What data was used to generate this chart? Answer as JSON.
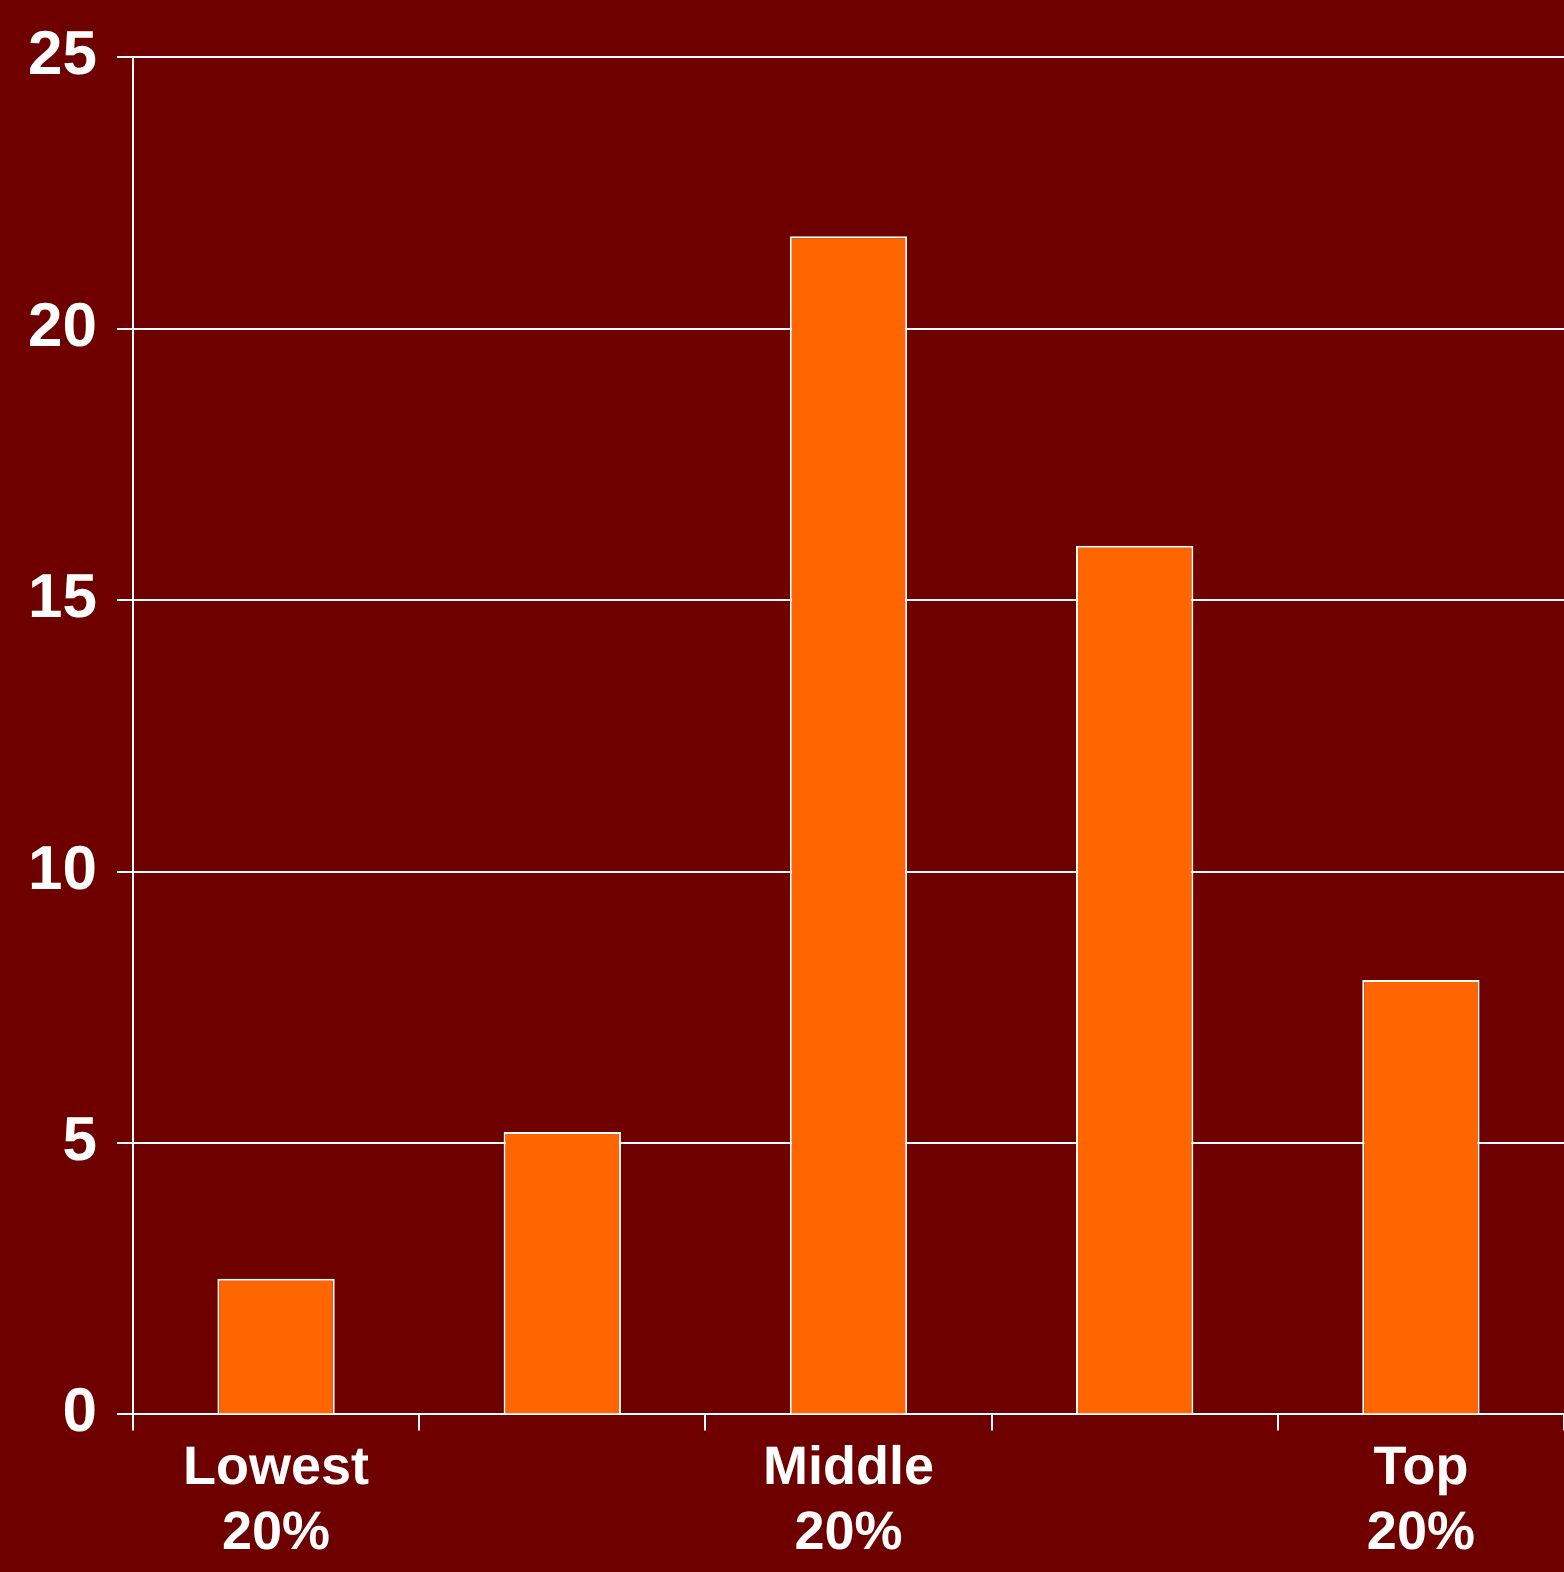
{
  "chart_data": {
    "type": "bar",
    "categories": [
      "Lowest 20%",
      null,
      "Middle 20%",
      null,
      "Top 20%"
    ],
    "values": [
      2.5,
      5.2,
      21.7,
      16,
      8
    ],
    "color": "#ff6600",
    "ylim": [
      0,
      25
    ],
    "yticks": [
      0,
      5,
      10,
      15,
      20,
      25
    ],
    "grid": "y",
    "legend": false
  }
}
